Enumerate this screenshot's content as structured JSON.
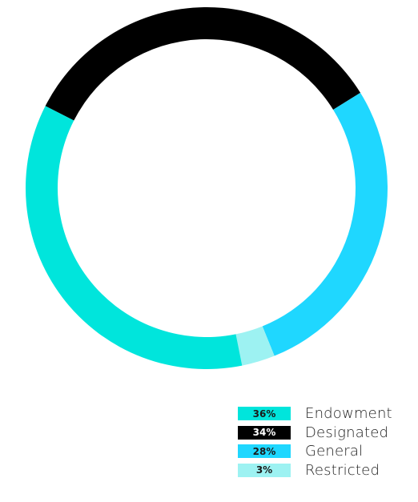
{
  "chart_data": {
    "type": "pie",
    "donut": true,
    "slices": [
      {
        "label": "Endowment",
        "value": 36,
        "display": "36%",
        "color": "#00E5DC",
        "text_color": "#1a1a1a"
      },
      {
        "label": "Designated",
        "value": 34,
        "display": "34%",
        "color": "#000000",
        "text_color": "#ffffff"
      },
      {
        "label": "General",
        "value": 28,
        "display": "28%",
        "color": "#1FD7FF",
        "text_color": "#1a1a1a"
      },
      {
        "label": "Restricted",
        "value": 3,
        "display": "3%",
        "color": "#9DF2F2",
        "text_color": "#1a1a1a"
      }
    ],
    "legend_position": "bottom-right"
  }
}
